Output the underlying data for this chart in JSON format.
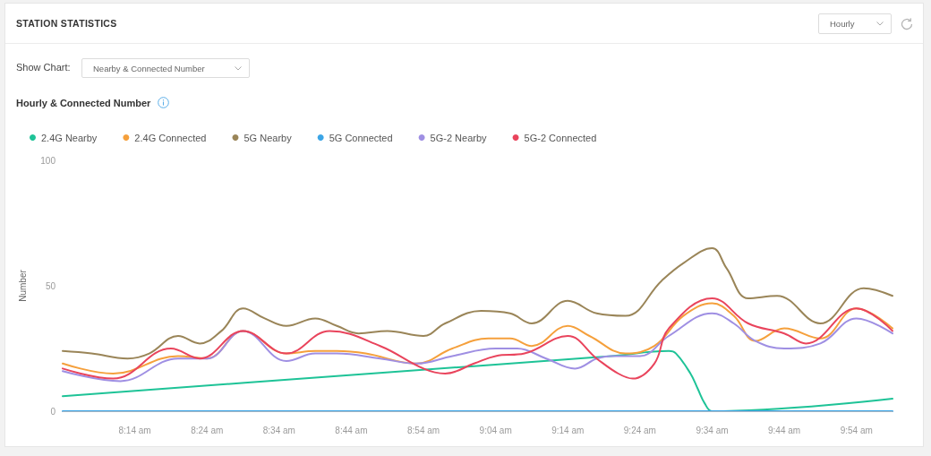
{
  "chart_data": {
    "type": "line",
    "title": "STATION STATISTICS",
    "subtitle": "Hourly & Connected Number",
    "ylabel": "Number",
    "annotations": [
      "Hourly",
      "Show Chart:",
      "Nearby & Connected Number"
    ],
    "xlim": [
      8.0667,
      9.9833
    ],
    "xticks": [
      {
        "value": 8.2333,
        "label": "8:14 am"
      },
      {
        "value": 8.4,
        "label": "8:24 am"
      },
      {
        "value": 8.5667,
        "label": "8:34 am"
      },
      {
        "value": 8.7333,
        "label": "8:44 am"
      },
      {
        "value": 8.9,
        "label": "8:54 am"
      },
      {
        "value": 9.0667,
        "label": "9:04 am"
      },
      {
        "value": 9.2333,
        "label": "9:14 am"
      },
      {
        "value": 9.4,
        "label": "9:24 am"
      },
      {
        "value": 9.5667,
        "label": "9:34 am"
      },
      {
        "value": 9.7333,
        "label": "9:44 am"
      },
      {
        "value": 9.9,
        "label": "9:54 am"
      }
    ],
    "ylim": [
      0,
      100
    ],
    "yticks": [
      0,
      50,
      100
    ],
    "legend": "top left",
    "series": [
      {
        "name": "2.4G Nearby",
        "color": "#1ec397",
        "x": [
          8.0667,
          8.7,
          9.3333,
          9.4667,
          9.4833,
          9.5167,
          9.5333,
          9.55,
          9.5667,
          9.9833
        ],
        "values": [
          6,
          14,
          22,
          24,
          23,
          15,
          9,
          3,
          0,
          5
        ]
      },
      {
        "name": "2.4G Connected",
        "color": "#f5a03c",
        "x": [
          8.0667,
          8.1833,
          8.3333,
          8.4,
          8.4833,
          8.5833,
          8.65,
          8.7,
          8.7667,
          8.8833,
          8.9667,
          9.05,
          9.1,
          9.15,
          9.2333,
          9.2833,
          9.3667,
          9.4333,
          9.5,
          9.5667,
          9.6167,
          9.6667,
          9.7333,
          9.8167,
          9.9,
          9.9833
        ],
        "values": [
          19,
          15,
          22,
          21,
          32,
          23,
          24,
          24,
          23,
          19,
          25,
          29,
          29,
          26,
          34,
          30,
          23,
          26,
          38,
          43,
          38,
          28,
          33,
          29,
          41,
          33
        ]
      },
      {
        "name": "5G Nearby",
        "color": "#9a8558",
        "x": [
          8.0667,
          8.1333,
          8.2167,
          8.2667,
          8.3333,
          8.3833,
          8.4333,
          8.4833,
          8.5333,
          8.5833,
          8.65,
          8.7,
          8.75,
          8.8167,
          8.9,
          8.95,
          9.0333,
          9.1,
          9.15,
          9.2333,
          9.3,
          9.3667,
          9.45,
          9.5,
          9.5667,
          9.6,
          9.65,
          9.7167,
          9.8167,
          9.9167,
          9.9833
        ],
        "values": [
          24,
          23,
          21,
          23,
          30,
          27,
          32,
          41,
          37,
          34,
          37,
          34,
          31,
          32,
          30,
          35,
          40,
          39,
          35,
          44,
          39,
          38,
          52,
          59,
          65,
          57,
          45,
          46,
          35,
          49,
          46
        ]
      },
      {
        "name": "5G Connected",
        "color": "#3ca5e6",
        "x": [
          8.0667,
          9.9833
        ],
        "values": [
          0,
          0
        ]
      },
      {
        "name": "5G-2 Nearby",
        "color": "#9f8fe3",
        "x": [
          8.0667,
          8.2,
          8.3333,
          8.4,
          8.4833,
          8.5833,
          8.65,
          8.7,
          8.8,
          8.8833,
          8.9667,
          9.0667,
          9.1167,
          9.1833,
          9.25,
          9.3,
          9.3333,
          9.4,
          9.4667,
          9.5667,
          9.6167,
          9.6667,
          9.7333,
          9.8167,
          9.9,
          9.9833
        ],
        "values": [
          16,
          12,
          21,
          21,
          32,
          20,
          23,
          23,
          21,
          19,
          22,
          25,
          25,
          21,
          17,
          21,
          22,
          22,
          30,
          39,
          35,
          28,
          25,
          27,
          37,
          31
        ]
      },
      {
        "name": "5G-2 Connected",
        "color": "#e9445c",
        "x": [
          8.0667,
          8.1833,
          8.3167,
          8.3833,
          8.4833,
          8.5833,
          8.6833,
          8.8,
          8.9,
          8.95,
          9.0167,
          9.0667,
          9.1333,
          9.2333,
          9.3,
          9.35,
          9.3833,
          9.4333,
          9.4667,
          9.5667,
          9.65,
          9.7333,
          9.7833,
          9.9,
          9.9833
        ],
        "values": [
          17,
          13,
          25,
          21,
          32,
          23,
          32,
          26,
          17,
          15,
          19,
          22,
          23,
          30,
          21,
          15,
          13,
          19,
          33,
          45,
          35,
          31,
          27,
          41,
          32
        ]
      }
    ]
  }
}
